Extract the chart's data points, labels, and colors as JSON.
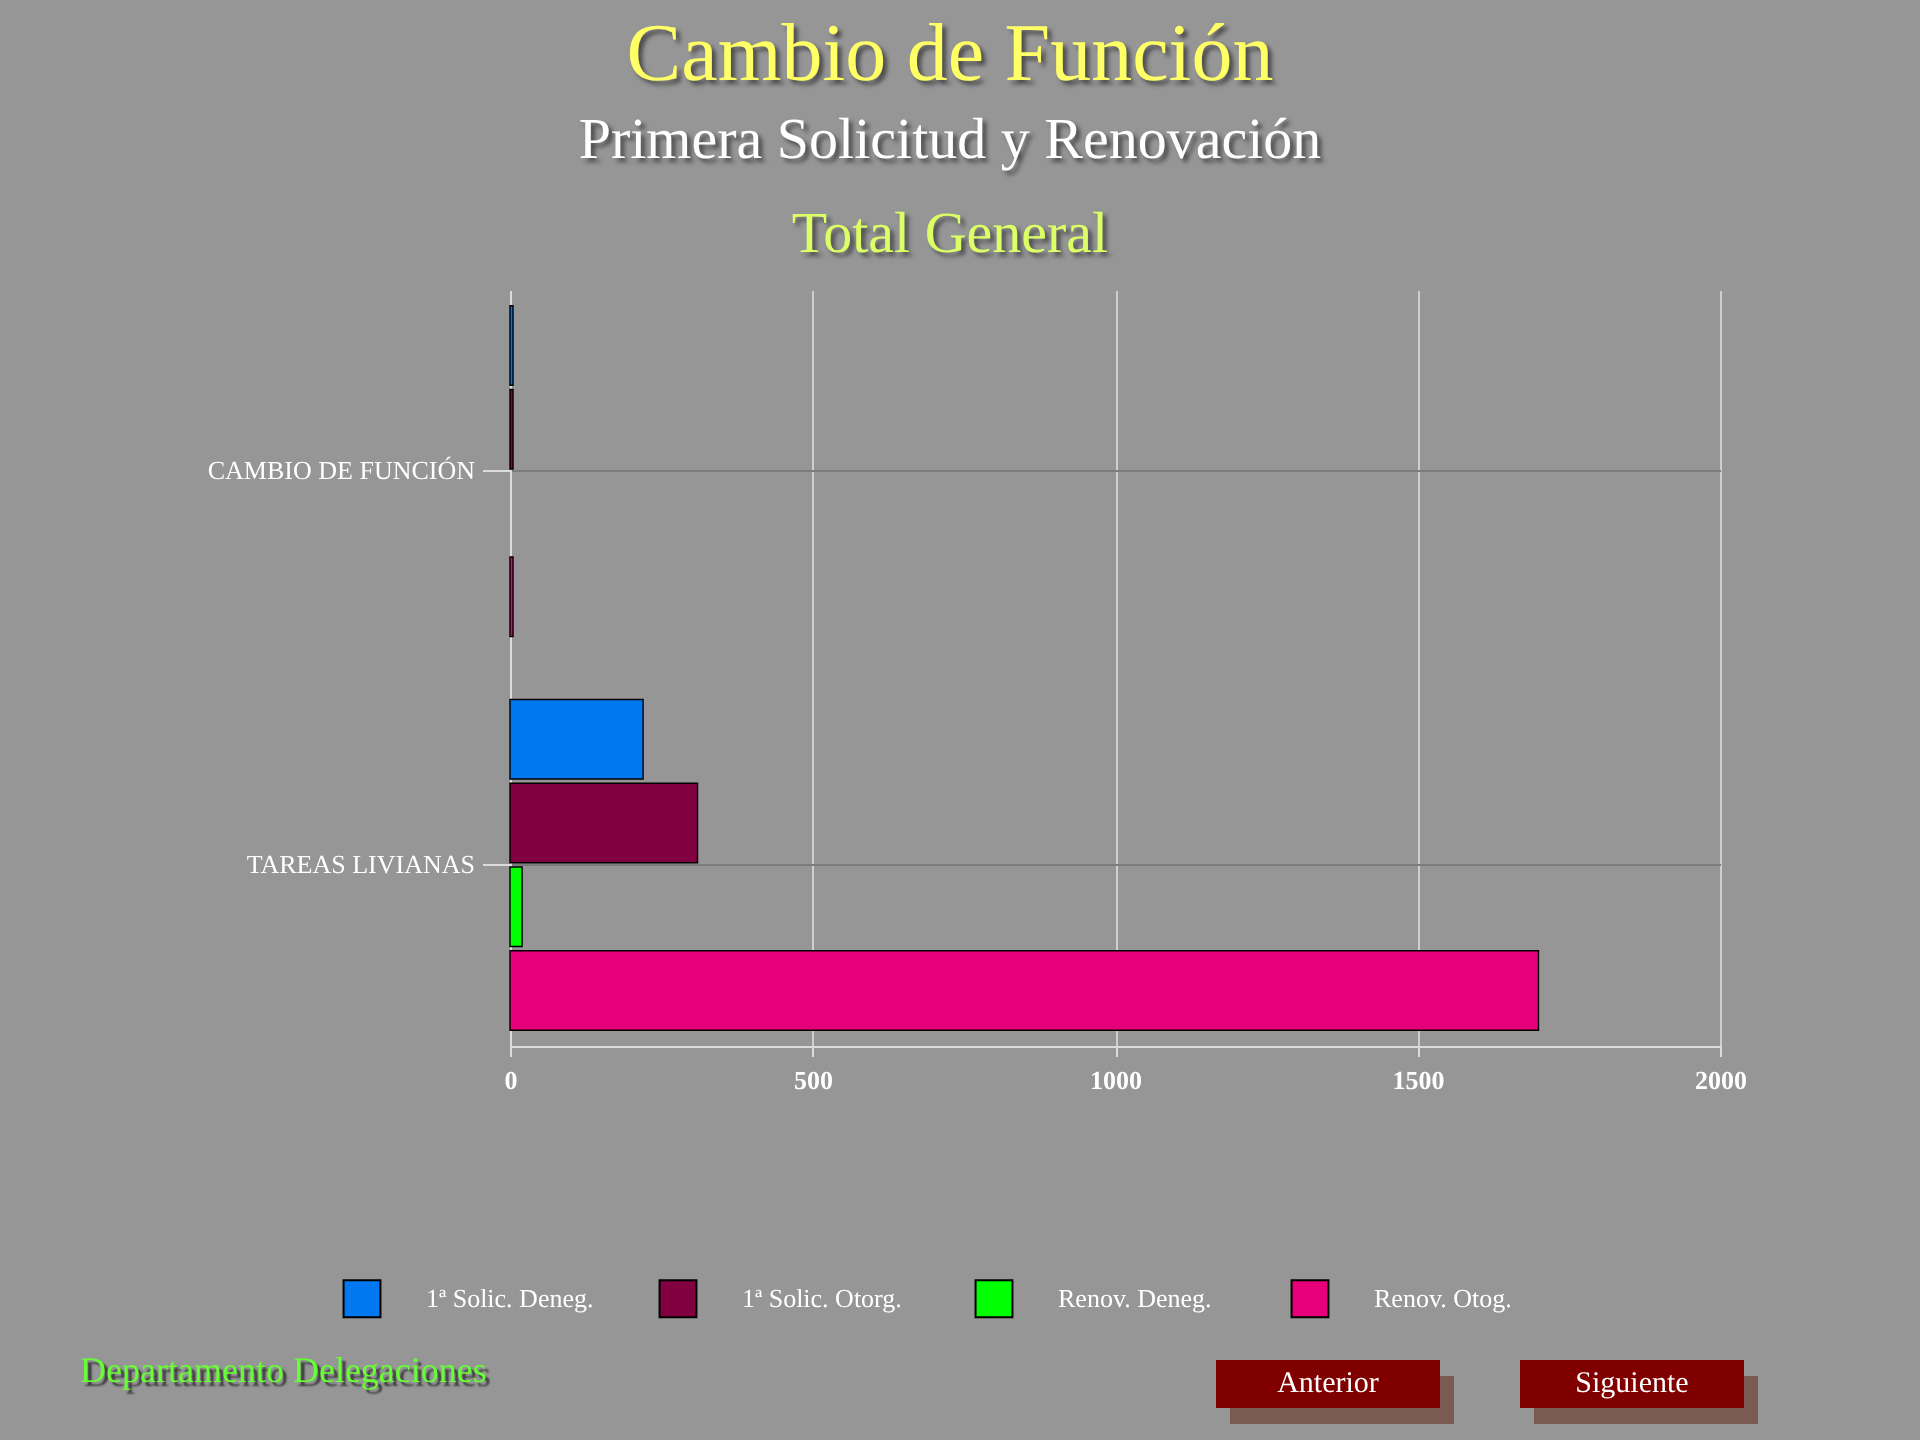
{
  "chart_data": {
    "type": "bar",
    "orientation": "horizontal",
    "title": "Cambio de Función",
    "subtitle": "Primera Solicitud y Renovación",
    "categories": [
      "CAMBIO DE FUNCIÓN",
      "TAREAS LIVIANAS"
    ],
    "series": [
      {
        "name": "1ª Solic. Deneg.",
        "color": "#0078f0",
        "values": [
          5,
          220
        ]
      },
      {
        "name": "1ª Solic. Otorg.",
        "color": "#800040",
        "values": [
          5,
          310
        ]
      },
      {
        "name": "Renov. Deneg.",
        "color": "#00ff00",
        "values": [
          null,
          20
        ]
      },
      {
        "name": "Renov. Otog.",
        "color": "#e6007a",
        "values": [
          5,
          1700
        ]
      }
    ],
    "xlim": [
      0,
      2000
    ],
    "xticks": [
      0,
      500,
      1000,
      1500,
      2000
    ],
    "grid": true,
    "legend": "bottom",
    "annotations": [
      "Total General",
      "Departamento Delegaciones",
      "Anterior",
      "Siguiente"
    ]
  }
}
